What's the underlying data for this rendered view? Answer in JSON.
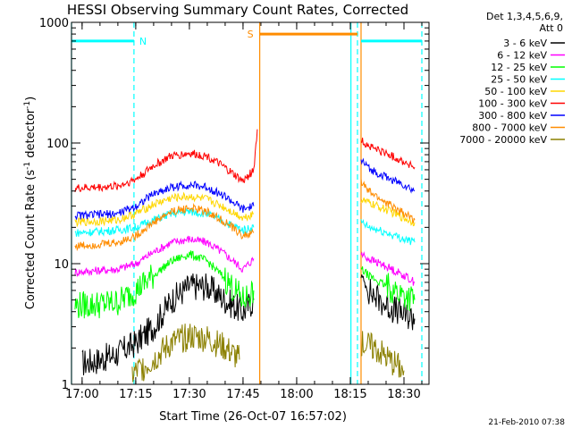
{
  "chart_data": {
    "type": "line",
    "title": "HESSI Observing Summary Count Rates, Corrected",
    "xlabel": "Start Time (26-Oct-07 16:57:02)",
    "ylabel": "Corrected Count Rate (s⁻¹ detector⁻¹)",
    "ylabel_parts": {
      "pre": "Corrected Count Rate (s",
      "sup1": "-1",
      "mid": " detector",
      "sup2": "-1",
      "post": ")"
    },
    "y_scale": "log",
    "ylim": [
      1,
      1000
    ],
    "xlim": [
      "16:57:02",
      "18:37:00"
    ],
    "x_ticks": [
      "17:00",
      "17:15",
      "17:30",
      "17:45",
      "18:00",
      "18:15",
      "18:30"
    ],
    "y_ticks": [
      "1",
      "10",
      "100",
      "1000"
    ],
    "legend_header": [
      "Det 1,3,4,5,6,9,",
      "Att 0"
    ],
    "timestamp": "21-Feb-2010 07:38",
    "markers": [
      {
        "label": "N",
        "from": "16:57:02",
        "to": "17:14:30",
        "color": "#00ffff",
        "level": 700
      },
      {
        "label": "S",
        "from": "17:49:40",
        "to": "18:17:00",
        "color": "#ff8c00",
        "level": 800
      },
      {
        "label": "",
        "from": "18:18:00",
        "to": "18:35:00",
        "color": "#00ffff",
        "level": 700
      }
    ],
    "vlines": [
      {
        "time": "16:57:02",
        "color": "#00ffff",
        "style": "solid"
      },
      {
        "time": "17:14:30",
        "color": "#00ffff",
        "style": "dashed"
      },
      {
        "time": "17:49:40",
        "color": "#ff8c00",
        "style": "solid"
      },
      {
        "time": "18:15:10",
        "color": "#00ffff",
        "style": "solid"
      },
      {
        "time": "18:17:00",
        "color": "#00ffff",
        "style": "dashed"
      },
      {
        "time": "18:18:00",
        "color": "#ff8c00",
        "style": "solid"
      },
      {
        "time": "18:35:00",
        "color": "#00ffff",
        "style": "dashed"
      }
    ],
    "series": [
      {
        "name": "3 - 6 keV",
        "color": "#000000",
        "segments": [
          {
            "x": [
              "17:00",
              "17:05",
              "17:10",
              "17:15",
              "17:20",
              "17:25",
              "17:30",
              "17:35",
              "17:40",
              "17:45",
              "17:48"
            ],
            "y": [
              1.5,
              1.6,
              1.8,
              2.2,
              3.0,
              5.0,
              6.5,
              6.5,
              5.0,
              4.0,
              5.0
            ]
          },
          {
            "x": [
              "18:18",
              "18:20",
              "18:25",
              "18:30",
              "18:33"
            ],
            "y": [
              8.0,
              6.0,
              4.5,
              3.8,
              3.5
            ]
          }
        ]
      },
      {
        "name": "6 - 12 keV",
        "color": "#ff00ff",
        "segments": [
          {
            "x": [
              "16:58",
              "17:05",
              "17:10",
              "17:15",
              "17:20",
              "17:25",
              "17:30",
              "17:35",
              "17:40",
              "17:45",
              "17:48"
            ],
            "y": [
              8.5,
              8.8,
              9.0,
              10.0,
              12.5,
              15.0,
              16.0,
              15.0,
              12.0,
              9.0,
              11.0
            ]
          },
          {
            "x": [
              "18:18",
              "18:20",
              "18:25",
              "18:30",
              "18:33"
            ],
            "y": [
              12.0,
              11.0,
              9.5,
              8.0,
              7.0
            ]
          }
        ]
      },
      {
        "name": "12 - 25 keV",
        "color": "#00ff00",
        "segments": [
          {
            "x": [
              "16:58",
              "17:05",
              "17:10",
              "17:15",
              "17:20",
              "17:25",
              "17:30",
              "17:35",
              "17:40",
              "17:45",
              "17:48"
            ],
            "y": [
              4.5,
              4.6,
              4.8,
              6.0,
              8.0,
              10.5,
              12.0,
              10.5,
              7.5,
              5.0,
              6.0
            ]
          },
          {
            "x": [
              "18:18",
              "18:20",
              "18:25",
              "18:30",
              "18:33"
            ],
            "y": [
              9.0,
              8.0,
              6.5,
              5.5,
              5.0
            ]
          }
        ]
      },
      {
        "name": "25 - 50 keV",
        "color": "#00ffff",
        "segments": [
          {
            "x": [
              "16:58",
              "17:05",
              "17:10",
              "17:15",
              "17:20",
              "17:25",
              "17:30",
              "17:35",
              "17:40",
              "17:45",
              "17:48"
            ],
            "y": [
              18.0,
              18.5,
              19.0,
              20.0,
              23.0,
              26.0,
              27.0,
              26.0,
              22.0,
              19.0,
              20.0
            ]
          },
          {
            "x": [
              "18:18",
              "18:20",
              "18:25",
              "18:30",
              "18:33"
            ],
            "y": [
              22.0,
              20.0,
              18.0,
              16.0,
              15.0
            ]
          }
        ]
      },
      {
        "name": "50 - 100 keV",
        "color": "#ffd700",
        "segments": [
          {
            "x": [
              "16:58",
              "17:05",
              "17:10",
              "17:15",
              "17:20",
              "17:25",
              "17:30",
              "17:35",
              "17:40",
              "17:45",
              "17:48"
            ],
            "y": [
              22.0,
              22.5,
              23.0,
              26.0,
              31.0,
              35.0,
              36.0,
              34.0,
              29.0,
              24.0,
              26.0
            ]
          },
          {
            "x": [
              "18:18",
              "18:20",
              "18:25",
              "18:30",
              "18:33"
            ],
            "y": [
              34.0,
              32.0,
              28.0,
              24.0,
              22.0
            ]
          }
        ]
      },
      {
        "name": "100 - 300 keV",
        "color": "#ff0000",
        "segments": [
          {
            "x": [
              "16:58",
              "17:05",
              "17:10",
              "17:15",
              "17:20",
              "17:25",
              "17:30",
              "17:35",
              "17:40",
              "17:45",
              "17:48",
              "17:49"
            ],
            "y": [
              42.0,
              43.0,
              44.0,
              50.0,
              65.0,
              78.0,
              82.0,
              78.0,
              62.0,
              48.0,
              60.0,
              130.0
            ]
          },
          {
            "x": [
              "18:18",
              "18:20",
              "18:25",
              "18:30",
              "18:33"
            ],
            "y": [
              105.0,
              95.0,
              82.0,
              70.0,
              63.0
            ]
          }
        ]
      },
      {
        "name": "300 - 800 keV",
        "color": "#0000ff",
        "segments": [
          {
            "x": [
              "16:58",
              "17:05",
              "17:10",
              "17:15",
              "17:20",
              "17:25",
              "17:30",
              "17:35",
              "17:40",
              "17:45",
              "17:48"
            ],
            "y": [
              25.0,
              25.5,
              26.0,
              30.0,
              38.0,
              43.0,
              45.0,
              43.0,
              36.0,
              28.0,
              30.0
            ]
          },
          {
            "x": [
              "18:18",
              "18:20",
              "18:25",
              "18:30",
              "18:33"
            ],
            "y": [
              72.0,
              62.0,
              52.0,
              45.0,
              40.0
            ]
          }
        ]
      },
      {
        "name": "800 - 7000 keV",
        "color": "#ff8c00",
        "segments": [
          {
            "x": [
              "16:58",
              "17:05",
              "17:10",
              "17:15",
              "17:20",
              "17:25",
              "17:30",
              "17:35",
              "17:40",
              "17:45",
              "17:48"
            ],
            "y": [
              14.0,
              14.5,
              15.0,
              17.0,
              22.0,
              27.0,
              29.0,
              27.0,
              22.0,
              17.0,
              18.0
            ]
          },
          {
            "x": [
              "18:18",
              "18:20",
              "18:25",
              "18:30",
              "18:33"
            ],
            "y": [
              48.0,
              40.0,
              32.0,
              26.0,
              23.0
            ]
          }
        ]
      },
      {
        "name": "7000 - 20000 keV",
        "color": "#8b8000",
        "segments": [
          {
            "x": [
              "17:14",
              "17:20",
              "17:25",
              "17:30",
              "17:35",
              "17:40",
              "17:44"
            ],
            "y": [
              1.2,
              1.6,
              2.2,
              2.5,
              2.4,
              2.0,
              1.6
            ]
          },
          {
            "x": [
              "18:18",
              "18:22",
              "18:26",
              "18:30"
            ],
            "y": [
              2.2,
              2.0,
              1.6,
              1.3
            ]
          }
        ]
      }
    ]
  }
}
